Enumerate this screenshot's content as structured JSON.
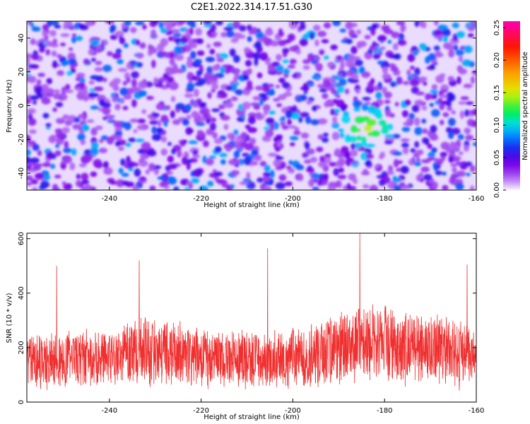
{
  "title": "C2E1.2022.314.17.51.G30",
  "chart_data": [
    {
      "type": "heatmap",
      "xlabel": "Height of straight line (km)",
      "ylabel": "Frequency (Hz)",
      "xlim": [
        -258,
        -160
      ],
      "ylim": [
        -50,
        50
      ],
      "xticks": [
        -240,
        -220,
        -200,
        -180,
        -160
      ],
      "yticks": [
        -40,
        -20,
        0,
        20,
        40
      ],
      "xtick_labels": [
        "-240",
        "-220",
        "-200",
        "-180",
        "-160"
      ],
      "ytick_labels": [
        "-40",
        "-20",
        "0",
        "20",
        "40"
      ],
      "colorbar": {
        "label": "Normalized spectral amplitude",
        "range": [
          0,
          0.26
        ],
        "ticks": [
          0,
          0.05,
          0.1,
          0.15,
          0.2,
          0.25
        ],
        "tick_labels": [
          "0.00",
          "0.05",
          "0.10",
          "0.15",
          "0.20",
          "0.25"
        ],
        "colormap": "rainbow (white-purple-blue-cyan-green-yellow-red-magenta)"
      },
      "typical_value": 0.03,
      "peak_value": 0.15,
      "peak_at": {
        "x": -184,
        "y": -13
      }
    },
    {
      "type": "line",
      "xlabel": "Height of straight line (km)",
      "ylabel": "SNR (10 * v/v)",
      "xlim": [
        -258,
        -160
      ],
      "ylim": [
        0,
        620
      ],
      "xticks": [
        -240,
        -220,
        -200,
        -180,
        -160
      ],
      "yticks": [
        0,
        200,
        400,
        600
      ],
      "xtick_labels": [
        "-240",
        "-220",
        "-200",
        "-180",
        "-160"
      ],
      "ytick_labels": [
        "0",
        "200",
        "400",
        "600"
      ],
      "series": [
        {
          "color": "#f03030",
          "x_step": 0.05,
          "envelope_x": [
            -258,
            -250,
            -240,
            -232,
            -225,
            -215,
            -205,
            -195,
            -188,
            -182,
            -175,
            -168,
            -160
          ],
          "envelope_mean": [
            160,
            150,
            160,
            190,
            175,
            150,
            150,
            170,
            215,
            225,
            205,
            190,
            170
          ],
          "envelope_spread": [
            95,
            95,
            100,
            120,
            105,
            95,
            95,
            110,
            125,
            130,
            120,
            115,
            105
          ],
          "spikes": [
            {
              "x": -251.5,
              "y": 500
            },
            {
              "x": -233.5,
              "y": 520
            },
            {
              "x": -205.5,
              "y": 565
            },
            {
              "x": -185.4,
              "y": 620
            },
            {
              "x": -162.0,
              "y": 505
            }
          ]
        }
      ]
    }
  ]
}
